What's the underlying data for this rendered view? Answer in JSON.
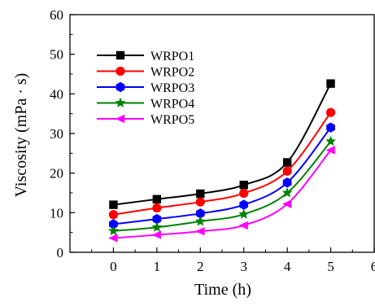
{
  "chart_data": {
    "type": "line",
    "xlabel": "Time (h)",
    "ylabel": "Viscosity (mPa · s)",
    "xlim": [
      -1,
      6
    ],
    "ylim": [
      0,
      60
    ],
    "x_ticks": [
      "0",
      "1",
      "2",
      "3",
      "4",
      "5",
      "6"
    ],
    "y_ticks": [
      "0",
      "10",
      "20",
      "30",
      "40",
      "50",
      "60"
    ],
    "grid": false,
    "legend_position": "top-left",
    "x": [
      0,
      1,
      2,
      3,
      4,
      5
    ],
    "series": [
      {
        "name": "WRPO1",
        "color": "#000000",
        "marker": "square",
        "values": [
          12.0,
          13.4,
          14.8,
          17.0,
          22.7,
          42.6
        ]
      },
      {
        "name": "WRPO2",
        "color": "#ff0000",
        "marker": "circle",
        "values": [
          9.5,
          11.2,
          12.7,
          14.9,
          20.5,
          35.3
        ]
      },
      {
        "name": "WRPO3",
        "color": "#0000ff",
        "marker": "hexagon",
        "values": [
          7.1,
          8.4,
          9.8,
          12.0,
          17.6,
          31.5
        ]
      },
      {
        "name": "WRPO4",
        "color": "#008000",
        "marker": "star",
        "values": [
          5.4,
          6.3,
          7.8,
          9.6,
          15.0,
          28.0
        ]
      },
      {
        "name": "WRPO5",
        "color": "#ff00ff",
        "marker": "triangle-left",
        "values": [
          3.6,
          4.4,
          5.3,
          6.8,
          12.2,
          25.8
        ]
      }
    ]
  }
}
